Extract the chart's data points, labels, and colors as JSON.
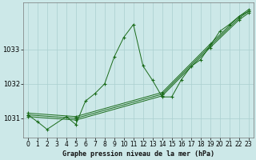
{
  "background_color": "#cce8e8",
  "grid_color": "#aacfcf",
  "line_color": "#1a6b1a",
  "title": "Graphe pression niveau de la mer (hPa)",
  "xlim": [
    -0.5,
    23.5
  ],
  "ylim": [
    1030.45,
    1034.35
  ],
  "yticks": [
    1031,
    1032,
    1033
  ],
  "xticks": [
    0,
    1,
    2,
    3,
    4,
    5,
    6,
    7,
    8,
    9,
    10,
    11,
    12,
    13,
    14,
    15,
    16,
    17,
    18,
    19,
    20,
    21,
    22,
    23
  ],
  "zigzag_x": [
    0,
    1,
    2,
    4,
    5,
    6,
    7,
    8,
    9,
    10,
    11,
    12,
    13,
    14,
    15,
    16,
    17,
    18,
    19,
    20,
    21,
    22,
    23
  ],
  "zigzag_y": [
    1031.1,
    1030.9,
    1030.68,
    1031.05,
    1030.82,
    1031.5,
    1031.72,
    1032.0,
    1032.78,
    1033.35,
    1033.72,
    1032.52,
    1032.1,
    1031.62,
    1031.62,
    1032.12,
    1032.5,
    1032.7,
    1033.1,
    1033.52,
    1033.72,
    1033.95,
    1034.1
  ],
  "diag1_x": [
    0,
    5,
    14,
    19,
    22,
    23
  ],
  "diag1_y": [
    1031.05,
    1030.95,
    1031.65,
    1033.05,
    1033.85,
    1034.05
  ],
  "diag2_x": [
    0,
    5,
    14,
    19,
    22,
    23
  ],
  "diag2_y": [
    1031.1,
    1031.0,
    1031.7,
    1033.1,
    1033.9,
    1034.1
  ],
  "diag3_x": [
    0,
    5,
    14,
    19,
    22,
    23
  ],
  "diag3_y": [
    1031.15,
    1031.05,
    1031.75,
    1033.15,
    1033.95,
    1034.15
  ]
}
